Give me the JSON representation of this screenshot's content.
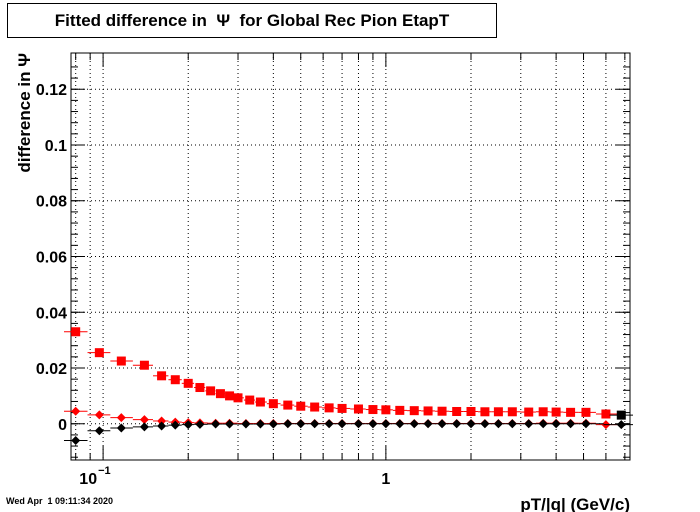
{
  "chart_data": {
    "type": "scatter",
    "title": "Fitted difference in  Ψ  for Global Rec Pion EtapT",
    "xlabel": "pT/|q| (GeV/c)",
    "ylabel": "difference in  Ψ",
    "x_scale": "log",
    "xlim": [
      0.077,
      7.3
    ],
    "ylim": [
      -0.013,
      0.133
    ],
    "grid": true,
    "y_ticks": [
      "0",
      "0.02",
      "0.04",
      "0.06",
      "0.08",
      "0.1",
      "0.12"
    ],
    "x_ticks": [
      {
        "label_base": "10",
        "label_exp": "−1",
        "value": 0.1
      },
      {
        "label_base": "1",
        "label_exp": "",
        "value": 1
      }
    ],
    "series": [
      {
        "marker": "square",
        "color": "#ff0000",
        "x": [
          0.08,
          0.097,
          0.116,
          0.14,
          0.161,
          0.18,
          0.2,
          0.22,
          0.24,
          0.26,
          0.28,
          0.3,
          0.33,
          0.36,
          0.4,
          0.45,
          0.5,
          0.56,
          0.63,
          0.7,
          0.8,
          0.9,
          1.0,
          1.12,
          1.26,
          1.41,
          1.58,
          1.78,
          2.0,
          2.24,
          2.5,
          2.8,
          3.2,
          3.6,
          4.0,
          4.5,
          5.1,
          6.0
        ],
        "y": [
          0.033,
          0.0255,
          0.0225,
          0.021,
          0.0172,
          0.0158,
          0.0145,
          0.013,
          0.0118,
          0.0108,
          0.01,
          0.0093,
          0.0085,
          0.0078,
          0.0072,
          0.0067,
          0.0063,
          0.006,
          0.0057,
          0.0055,
          0.0053,
          0.0051,
          0.005,
          0.0048,
          0.0047,
          0.0046,
          0.0045,
          0.0044,
          0.0044,
          0.0043,
          0.0043,
          0.0043,
          0.0042,
          0.0043,
          0.0042,
          0.0041,
          0.0041,
          0.0035
        ]
      },
      {
        "marker": "circle",
        "color": "#ff0000",
        "x": [
          0.08,
          0.097,
          0.116,
          0.14,
          0.161,
          0.18,
          0.2,
          0.22,
          0.25,
          0.28,
          0.32,
          0.36,
          0.4,
          0.45,
          0.5,
          0.56,
          0.63,
          0.7,
          0.8,
          0.9,
          1.0,
          1.12,
          1.26,
          1.41,
          1.58,
          1.78,
          2.0,
          2.24,
          2.5,
          2.8,
          3.2,
          3.6,
          4.0,
          4.5,
          5.1,
          6.0
        ],
        "y": [
          0.0045,
          0.0032,
          0.0022,
          0.0015,
          0.001,
          0.0006,
          0.0004,
          0.0003,
          0.0002,
          0.0002,
          0.0001,
          0.0001,
          0.0001,
          0.0001,
          0.0001,
          0.0001,
          0.0001,
          0.0001,
          0.0001,
          0.0001,
          0.0001,
          0.0001,
          0.0001,
          0.0001,
          0.0001,
          0.0001,
          0.0001,
          0.0001,
          0.0001,
          0.0001,
          0.0001,
          0.0002,
          0.0002,
          0.0002,
          0.0002,
          -0.0003
        ]
      },
      {
        "marker": "circle",
        "color": "#000000",
        "x": [
          0.08,
          0.097,
          0.116,
          0.14,
          0.161,
          0.18,
          0.2,
          0.22,
          0.25,
          0.28,
          0.32,
          0.36,
          0.4,
          0.45,
          0.5,
          0.56,
          0.63,
          0.7,
          0.8,
          0.9,
          1.0,
          1.12,
          1.26,
          1.41,
          1.58,
          1.78,
          2.0,
          2.24,
          2.5,
          2.8,
          3.2,
          3.6,
          4.0,
          4.5,
          5.1,
          6.8
        ],
        "y": [
          -0.006,
          -0.0025,
          -0.0015,
          -0.0011,
          -0.0008,
          -0.0005,
          -0.0003,
          -0.0002,
          -0.0001,
          -0.0001,
          -0.0001,
          -0.0001,
          -0.0001,
          0.0,
          0.0,
          0.0,
          0.0,
          0.0,
          0.0,
          0.0,
          0.0,
          0.0,
          0.0,
          0.0,
          0.0,
          0.0,
          0.0,
          0.0,
          0.0,
          0.0,
          0.0,
          0.0,
          0.0,
          0.0,
          0.0,
          -0.0003
        ]
      },
      {
        "marker": "square",
        "color": "#000000",
        "x": [
          6.8
        ],
        "y": [
          0.0031
        ]
      }
    ]
  },
  "footer": {
    "timestamp": "Wed Apr  1 09:11:34 2020"
  }
}
